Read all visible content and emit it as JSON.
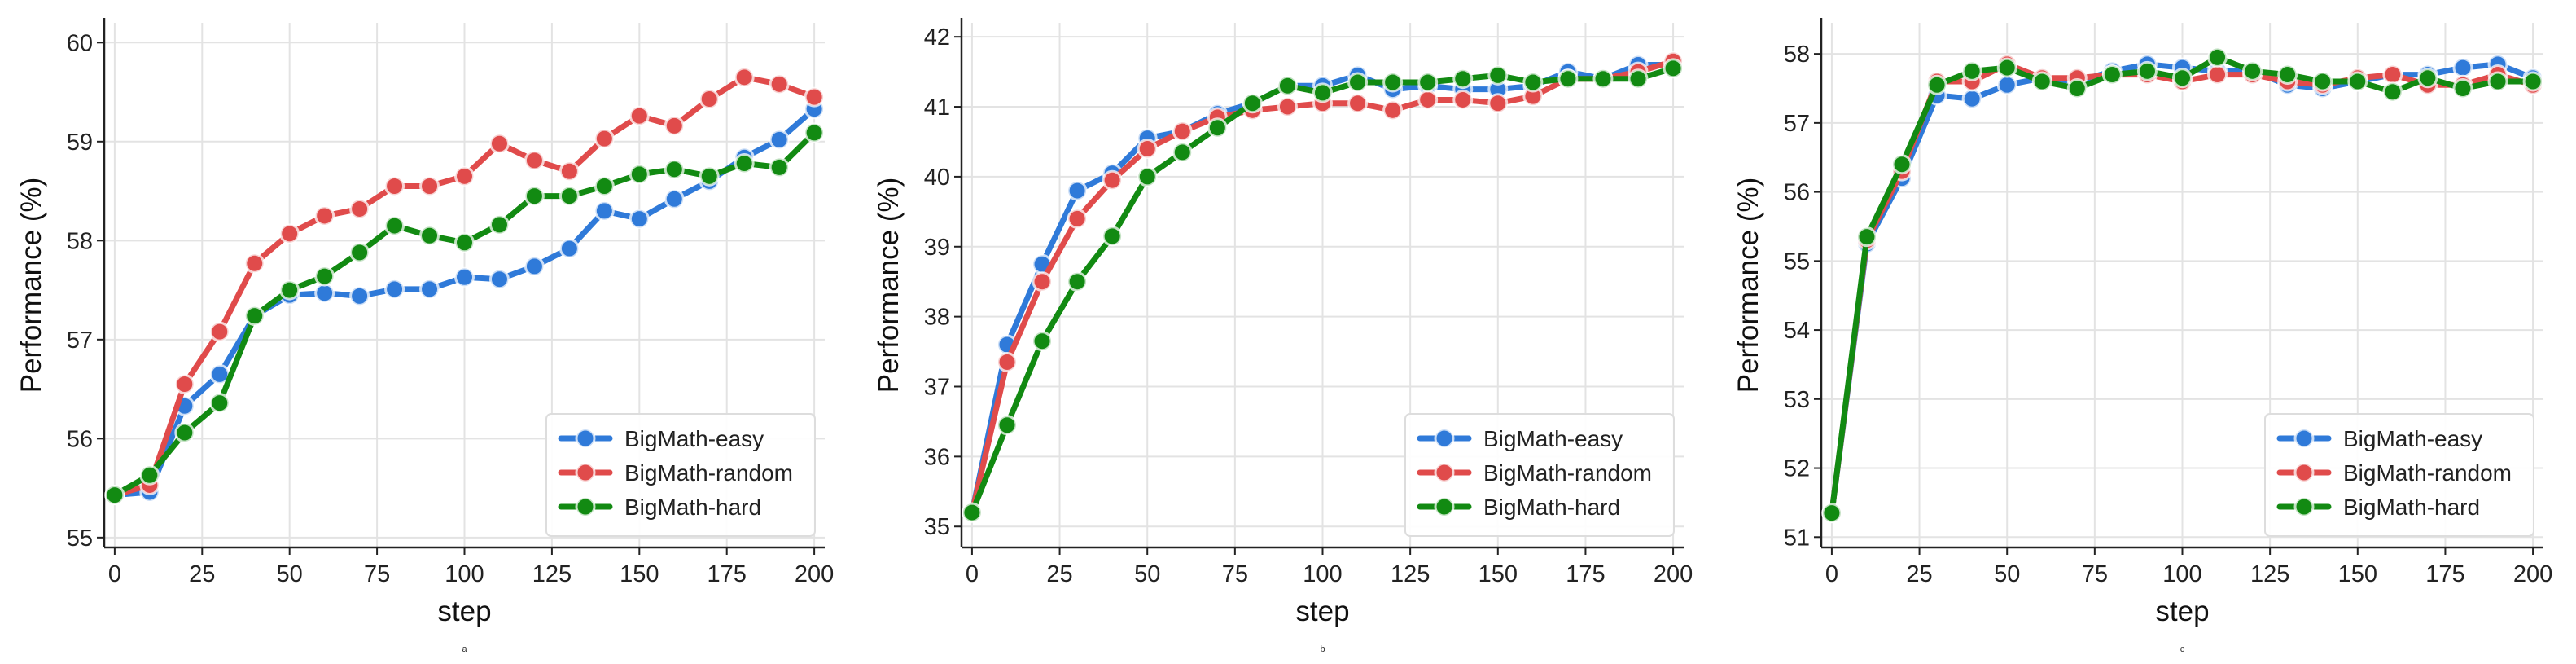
{
  "chart_data": [
    {
      "type": "line",
      "panel_label": "a",
      "xlabel": "step",
      "ylabel": "Performance (%)",
      "x": [
        0,
        10,
        20,
        30,
        40,
        50,
        60,
        70,
        80,
        90,
        100,
        110,
        120,
        130,
        140,
        150,
        160,
        170,
        180,
        190,
        200
      ],
      "xlim": [
        -3,
        203
      ],
      "ylim": [
        54.9,
        60.2
      ],
      "xticks": [
        0,
        25,
        50,
        75,
        100,
        125,
        150,
        175,
        200
      ],
      "yticks": [
        55,
        56,
        57,
        58,
        59,
        60
      ],
      "legend_position": "lower-right",
      "grid": true,
      "series": [
        {
          "name": "BigMath-easy",
          "color": "#2f7ad9",
          "values": [
            55.43,
            55.46,
            56.33,
            56.65,
            57.24,
            57.45,
            57.47,
            57.44,
            57.51,
            57.51,
            57.63,
            57.61,
            57.74,
            57.92,
            58.3,
            58.22,
            58.42,
            58.6,
            58.84,
            59.02,
            59.33
          ]
        },
        {
          "name": "BigMath-random",
          "color": "#e04b4b",
          "values": [
            55.43,
            55.53,
            56.55,
            57.08,
            57.77,
            58.07,
            58.25,
            58.32,
            58.55,
            58.55,
            58.65,
            58.98,
            58.81,
            58.7,
            59.03,
            59.26,
            59.16,
            59.43,
            59.65,
            59.58,
            59.45
          ]
        },
        {
          "name": "BigMath-hard",
          "color": "#128a12",
          "values": [
            55.43,
            55.63,
            56.06,
            56.36,
            57.24,
            57.5,
            57.64,
            57.88,
            58.15,
            58.05,
            57.98,
            58.16,
            58.45,
            58.45,
            58.55,
            58.67,
            58.72,
            58.65,
            58.78,
            58.74,
            59.09
          ]
        }
      ]
    },
    {
      "type": "line",
      "panel_label": "b",
      "xlabel": "step",
      "ylabel": "Performance (%)",
      "x": [
        0,
        10,
        20,
        30,
        40,
        50,
        60,
        70,
        80,
        90,
        100,
        110,
        120,
        130,
        140,
        150,
        160,
        170,
        180,
        190,
        200
      ],
      "xlim": [
        -3,
        203
      ],
      "ylim": [
        34.7,
        42.2
      ],
      "xticks": [
        0,
        25,
        50,
        75,
        100,
        125,
        150,
        175,
        200
      ],
      "yticks": [
        35,
        36,
        37,
        38,
        39,
        40,
        41,
        42
      ],
      "legend_position": "lower-right",
      "grid": true,
      "series": [
        {
          "name": "BigMath-easy",
          "color": "#2f7ad9",
          "values": [
            35.2,
            37.6,
            38.75,
            39.8,
            40.05,
            40.55,
            40.65,
            40.9,
            41.05,
            41.3,
            41.3,
            41.45,
            41.25,
            41.3,
            41.25,
            41.25,
            41.3,
            41.5,
            41.4,
            41.6,
            41.6
          ]
        },
        {
          "name": "BigMath-random",
          "color": "#e04b4b",
          "values": [
            35.2,
            37.35,
            38.5,
            39.4,
            39.95,
            40.4,
            40.65,
            40.85,
            40.95,
            41.0,
            41.05,
            41.05,
            40.95,
            41.1,
            41.1,
            41.05,
            41.15,
            41.4,
            41.4,
            41.5,
            41.65
          ]
        },
        {
          "name": "BigMath-hard",
          "color": "#128a12",
          "values": [
            35.2,
            36.45,
            37.65,
            38.5,
            39.15,
            40.0,
            40.35,
            40.7,
            41.05,
            41.3,
            41.2,
            41.35,
            41.35,
            41.35,
            41.4,
            41.45,
            41.35,
            41.4,
            41.4,
            41.4,
            41.55
          ]
        }
      ]
    },
    {
      "type": "line",
      "panel_label": "c",
      "xlabel": "step",
      "ylabel": "Performance (%)",
      "x": [
        0,
        10,
        20,
        30,
        40,
        50,
        60,
        70,
        80,
        90,
        100,
        110,
        120,
        130,
        140,
        150,
        160,
        170,
        180,
        190,
        200
      ],
      "xlim": [
        -3,
        203
      ],
      "ylim": [
        50.85,
        58.45
      ],
      "xticks": [
        0,
        25,
        50,
        75,
        100,
        125,
        150,
        175,
        200
      ],
      "yticks": [
        51,
        52,
        53,
        54,
        55,
        56,
        57,
        58
      ],
      "legend_position": "lower-right",
      "grid": true,
      "series": [
        {
          "name": "BigMath-easy",
          "color": "#2f7ad9",
          "values": [
            51.35,
            55.25,
            56.2,
            57.4,
            57.35,
            57.55,
            57.65,
            57.6,
            57.75,
            57.85,
            57.8,
            57.75,
            57.75,
            57.55,
            57.5,
            57.6,
            57.7,
            57.7,
            57.8,
            57.85,
            57.65
          ]
        },
        {
          "name": "BigMath-random",
          "color": "#e04b4b",
          "values": [
            51.35,
            55.3,
            56.3,
            57.6,
            57.6,
            57.85,
            57.65,
            57.65,
            57.7,
            57.7,
            57.6,
            57.7,
            57.7,
            57.6,
            57.55,
            57.65,
            57.7,
            57.55,
            57.55,
            57.7,
            57.55
          ]
        },
        {
          "name": "BigMath-hard",
          "color": "#128a12",
          "values": [
            51.35,
            55.35,
            56.4,
            57.55,
            57.75,
            57.8,
            57.6,
            57.5,
            57.7,
            57.75,
            57.65,
            57.95,
            57.75,
            57.7,
            57.6,
            57.6,
            57.45,
            57.65,
            57.5,
            57.6,
            57.6
          ]
        }
      ]
    }
  ]
}
